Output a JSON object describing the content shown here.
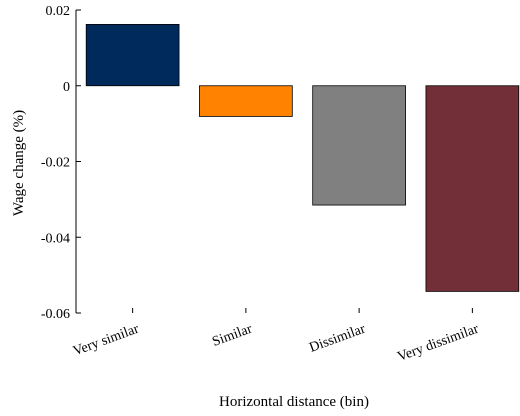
{
  "chart_data": {
    "type": "bar",
    "categories": [
      "Very similar",
      "Similar",
      "Dissimilar",
      "Very dissimilar"
    ],
    "values": [
      0.0162,
      -0.0081,
      -0.0315,
      -0.0543
    ],
    "colors": [
      "#002a5c",
      "#ff8200",
      "#808080",
      "#722f37"
    ],
    "xlabel": "Horizontal distance (bin)",
    "ylabel": "Wage change (%)",
    "ylim": [
      -0.06,
      0.02
    ],
    "yticks": [
      0.02,
      0,
      -0.02,
      -0.04,
      -0.06
    ],
    "ytick_labels": [
      "0.02",
      "0",
      "-0.02",
      "-0.04",
      "-0.06"
    ],
    "grid": false
  }
}
